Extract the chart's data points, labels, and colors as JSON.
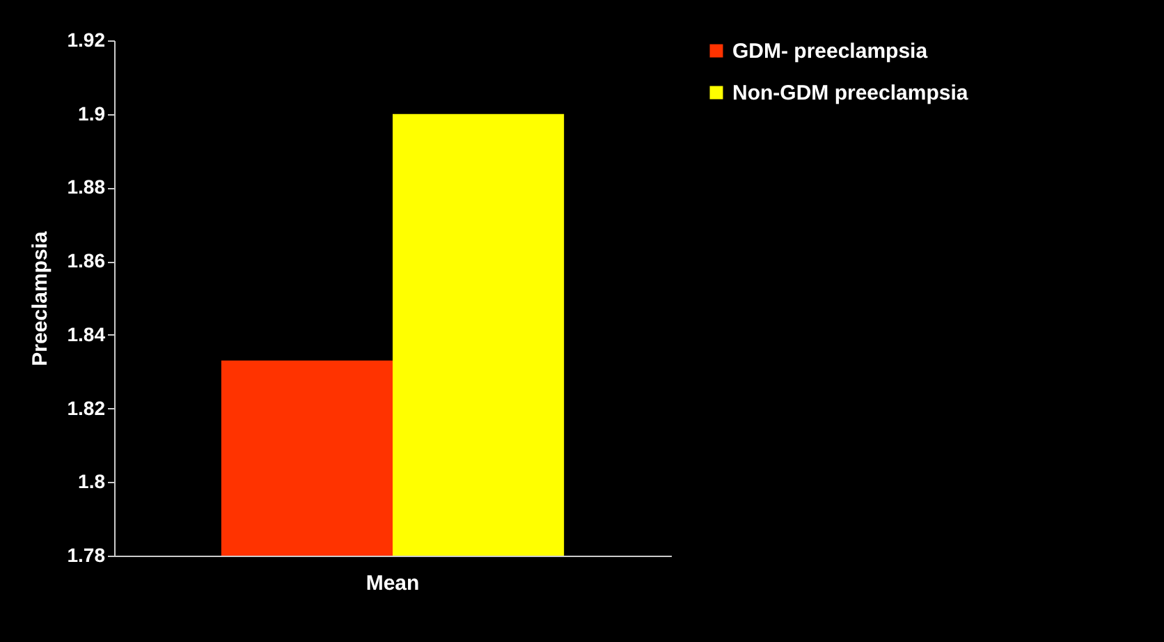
{
  "chart_data": {
    "type": "bar",
    "ylabel": "Preeclampsia",
    "categories": [
      "Mean"
    ],
    "series": [
      {
        "name": "GDM- preeclampsia",
        "color": "#ff3300",
        "values": [
          1.833
        ]
      },
      {
        "name": "Non-GDM preeclampsia",
        "color": "#ffff00",
        "values": [
          1.9
        ]
      }
    ],
    "ylim": [
      1.78,
      1.92
    ],
    "yticks": [
      1.78,
      {
        "value": 1.8,
        "label": "1.8"
      },
      1.82,
      1.84,
      1.86,
      1.88,
      {
        "value": 1.9,
        "label": "1.9"
      },
      1.92
    ],
    "grid": false,
    "legend": "right"
  }
}
